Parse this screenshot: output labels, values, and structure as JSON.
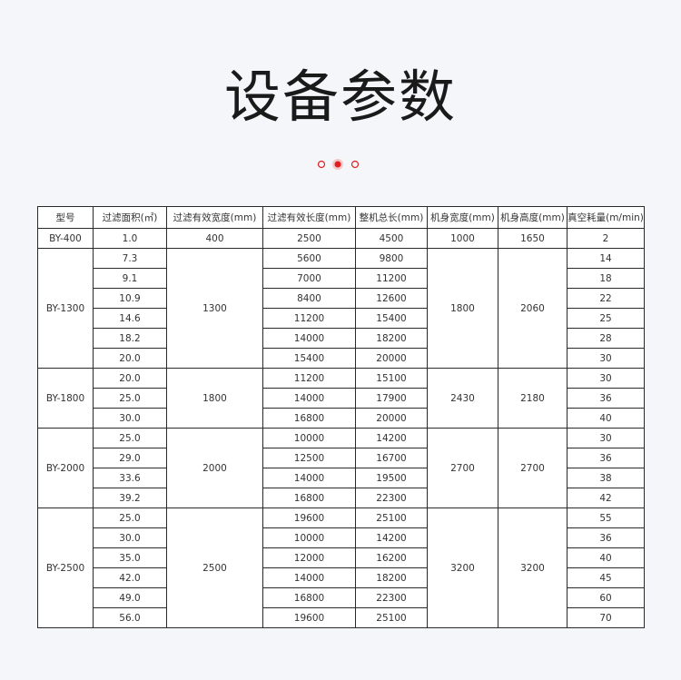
{
  "header": {
    "title": "设备参数"
  },
  "table": {
    "columns": [
      "型号",
      "过滤面积(㎡)",
      "过滤有效宽度(mm)",
      "过滤有效长度(mm)",
      "整机总长(mm)",
      "机身宽度(mm)",
      "机身高度(mm)",
      "真空耗量(m/min)"
    ],
    "groups": [
      {
        "model": "BY-400",
        "width": "400",
        "body_width": "1000",
        "body_height": "1650",
        "rows": [
          [
            "1.0",
            "2500",
            "4500",
            "2"
          ]
        ]
      },
      {
        "model": "BY-1300",
        "width": "1300",
        "body_width": "1800",
        "body_height": "2060",
        "rows": [
          [
            "7.3",
            "5600",
            "9800",
            "14"
          ],
          [
            "9.1",
            "7000",
            "11200",
            "18"
          ],
          [
            "10.9",
            "8400",
            "12600",
            "22"
          ],
          [
            "14.6",
            "11200",
            "15400",
            "25"
          ],
          [
            "18.2",
            "14000",
            "18200",
            "28"
          ],
          [
            "20.0",
            "15400",
            "20000",
            "30"
          ]
        ]
      },
      {
        "model": "BY-1800",
        "width": "1800",
        "body_width": "2430",
        "body_height": "2180",
        "rows": [
          [
            "20.0",
            "11200",
            "15100",
            "30"
          ],
          [
            "25.0",
            "14000",
            "17900",
            "36"
          ],
          [
            "30.0",
            "16800",
            "20000",
            "40"
          ]
        ]
      },
      {
        "model": "BY-2000",
        "width": "2000",
        "body_width": "2700",
        "body_height": "2700",
        "rows": [
          [
            "25.0",
            "10000",
            "14200",
            "30"
          ],
          [
            "29.0",
            "12500",
            "16700",
            "36"
          ],
          [
            "33.6",
            "14000",
            "19500",
            "38"
          ],
          [
            "39.2",
            "16800",
            "22300",
            "42"
          ]
        ]
      },
      {
        "model": "BY-2500",
        "width": "2500",
        "body_width": "3200",
        "body_height": "3200",
        "rows": [
          [
            "25.0",
            "19600",
            "25100",
            "55"
          ],
          [
            "30.0",
            "10000",
            "14200",
            "36"
          ],
          [
            "35.0",
            "12000",
            "16200",
            "40"
          ],
          [
            "42.0",
            "14000",
            "18200",
            "45"
          ],
          [
            "49.0",
            "16800",
            "22300",
            "60"
          ],
          [
            "56.0",
            "19600",
            "25100",
            "70"
          ]
        ]
      }
    ]
  }
}
